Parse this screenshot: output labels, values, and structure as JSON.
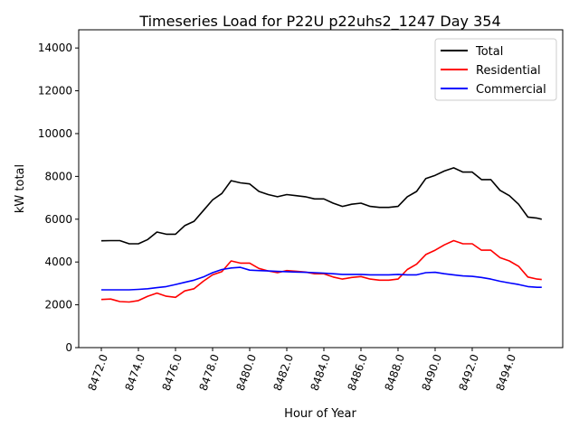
{
  "chart_data": {
    "type": "line",
    "title": "Timeseries Load for P22U p22uhs2_1247  Day 354",
    "xlabel": "Hour of Year",
    "ylabel": "kW total",
    "xlim": [
      8470.78,
      8496.88
    ],
    "ylim": [
      0,
      14850
    ],
    "xticks": [
      8472,
      8474,
      8476,
      8478,
      8480,
      8482,
      8484,
      8486,
      8488,
      8490,
      8492,
      8494
    ],
    "xtick_labels": [
      "8472.0",
      "8474.0",
      "8476.0",
      "8478.0",
      "8480.0",
      "8482.0",
      "8484.0",
      "8486.0",
      "8488.0",
      "8490.0",
      "8492.0",
      "8494.0"
    ],
    "yticks": [
      0,
      2000,
      4000,
      6000,
      8000,
      10000,
      12000,
      14000
    ],
    "ytick_labels": [
      "0",
      "2000",
      "4000",
      "6000",
      "8000",
      "10000",
      "12000",
      "14000"
    ],
    "grid": false,
    "legend_position": "top-right",
    "x": [
      8472,
      8472.5,
      8473,
      8473.5,
      8474,
      8474.5,
      8475,
      8475.5,
      8476,
      8476.5,
      8477,
      8477.5,
      8478,
      8478.5,
      8479,
      8479.5,
      8480,
      8480.5,
      8481,
      8481.5,
      8482,
      8482.5,
      8483,
      8483.5,
      8484,
      8484.5,
      8485,
      8485.5,
      8486,
      8486.5,
      8487,
      8487.5,
      8488,
      8488.5,
      8489,
      8489.5,
      8490,
      8490.5,
      8491,
      8491.5,
      8492,
      8492.5,
      8493,
      8493.5,
      8494,
      8494.5,
      8495,
      8495.5,
      8495.75
    ],
    "series": [
      {
        "name": "Total",
        "color": "#000000",
        "values": [
          4990,
          5000,
          5000,
          4850,
          4850,
          5050,
          5400,
          5300,
          5300,
          5700,
          5900,
          6400,
          6900,
          7200,
          7800,
          7700,
          7650,
          7300,
          7150,
          7050,
          7150,
          7100,
          7050,
          6950,
          6950,
          6750,
          6600,
          6700,
          6750,
          6600,
          6550,
          6550,
          6600,
          7050,
          7300,
          7900,
          8050,
          8250,
          8400,
          8200,
          8200,
          7850,
          7850,
          7350,
          7100,
          6700,
          6100,
          6050,
          6000
        ]
      },
      {
        "name": "Residential",
        "color": "#ff0000",
        "values": [
          2250,
          2270,
          2150,
          2130,
          2200,
          2400,
          2550,
          2400,
          2350,
          2650,
          2750,
          3100,
          3400,
          3550,
          4050,
          3950,
          3950,
          3700,
          3580,
          3500,
          3600,
          3570,
          3530,
          3450,
          3450,
          3300,
          3200,
          3280,
          3320,
          3200,
          3150,
          3150,
          3200,
          3650,
          3900,
          4350,
          4550,
          4800,
          5000,
          4850,
          4850,
          4550,
          4550,
          4200,
          4050,
          3800,
          3300,
          3200,
          3180
        ]
      },
      {
        "name": "Commercial",
        "color": "#0000ff",
        "values": [
          2700,
          2700,
          2700,
          2700,
          2720,
          2750,
          2800,
          2850,
          2950,
          3050,
          3150,
          3300,
          3500,
          3650,
          3720,
          3750,
          3620,
          3600,
          3580,
          3560,
          3550,
          3530,
          3520,
          3500,
          3480,
          3450,
          3420,
          3420,
          3420,
          3400,
          3400,
          3400,
          3420,
          3400,
          3400,
          3500,
          3520,
          3450,
          3400,
          3350,
          3330,
          3280,
          3200,
          3100,
          3020,
          2950,
          2850,
          2820,
          2820
        ]
      }
    ]
  }
}
